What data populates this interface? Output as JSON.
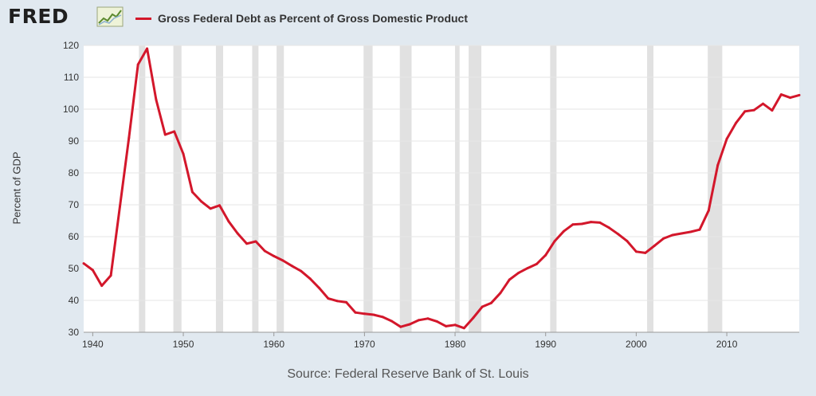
{
  "header": {
    "logo_text": "FRED",
    "logo_icon": "line-chart-icon"
  },
  "source_text": "Source: Federal Reserve Bank of St. Louis",
  "colors": {
    "series": "#d3172b",
    "recession": "#e1e1e1",
    "background": "#e1e9f0",
    "plot": "#ffffff",
    "grid": "#e6e6e6"
  },
  "chart_data": {
    "type": "line",
    "title": "",
    "xlabel": "",
    "ylabel": "Percent of GDP",
    "xlim": [
      1939,
      2018
    ],
    "ylim": [
      30,
      120
    ],
    "yticks": [
      30,
      40,
      50,
      60,
      70,
      80,
      90,
      100,
      110,
      120
    ],
    "xticks": [
      1940,
      1950,
      1960,
      1970,
      1980,
      1990,
      2000,
      2010
    ],
    "grid": true,
    "legend": "top",
    "recession_shading": [
      [
        1945.1,
        1945.8
      ],
      [
        1948.9,
        1949.8
      ],
      [
        1953.6,
        1954.4
      ],
      [
        1957.6,
        1958.3
      ],
      [
        1960.3,
        1961.1
      ],
      [
        1969.9,
        1970.9
      ],
      [
        1973.9,
        1975.2
      ],
      [
        1980.0,
        1980.5
      ],
      [
        1981.5,
        1982.9
      ],
      [
        1990.5,
        1991.2
      ],
      [
        2001.2,
        2001.9
      ],
      [
        2007.9,
        2009.5
      ]
    ],
    "series": [
      {
        "name": "Gross Federal Debt as Percent of Gross Domestic Product",
        "x": [
          1939,
          1940,
          1941,
          1942,
          1943,
          1944,
          1945,
          1946,
          1947,
          1948,
          1949,
          1950,
          1951,
          1952,
          1953,
          1954,
          1955,
          1956,
          1957,
          1958,
          1959,
          1960,
          1961,
          1962,
          1963,
          1964,
          1965,
          1966,
          1967,
          1968,
          1969,
          1970,
          1971,
          1972,
          1973,
          1974,
          1975,
          1976,
          1977,
          1978,
          1979,
          1980,
          1981,
          1982,
          1983,
          1984,
          1985,
          1986,
          1987,
          1988,
          1989,
          1990,
          1991,
          1992,
          1993,
          1994,
          1995,
          1996,
          1997,
          1998,
          1999,
          2000,
          2001,
          2002,
          2003,
          2004,
          2005,
          2006,
          2007,
          2008,
          2009,
          2010,
          2011,
          2012,
          2013,
          2014,
          2015,
          2016,
          2017,
          2018
        ],
        "values": [
          51.6,
          49.5,
          44.6,
          47.8,
          69.5,
          91.0,
          114.0,
          119.0,
          103.0,
          92.0,
          93.0,
          86.0,
          74.0,
          71.0,
          68.8,
          69.8,
          64.8,
          61.0,
          57.8,
          58.5,
          55.5,
          53.9,
          52.5,
          50.8,
          49.2,
          46.8,
          43.9,
          40.6,
          39.8,
          39.4,
          36.2,
          35.8,
          35.5,
          34.8,
          33.5,
          31.7,
          32.5,
          33.8,
          34.3,
          33.4,
          31.9,
          32.3,
          31.3,
          34.5,
          38.0,
          39.2,
          42.3,
          46.5,
          48.6,
          50.1,
          51.4,
          54.2,
          58.6,
          61.7,
          63.8,
          64.0,
          64.6,
          64.4,
          62.8,
          60.8,
          58.6,
          55.3,
          54.9,
          57.1,
          59.4,
          60.5,
          61.0,
          61.5,
          62.2,
          68.2,
          82.4,
          90.7,
          95.6,
          99.3,
          99.7,
          101.7,
          99.6,
          104.6,
          103.6,
          104.4
        ]
      }
    ]
  }
}
